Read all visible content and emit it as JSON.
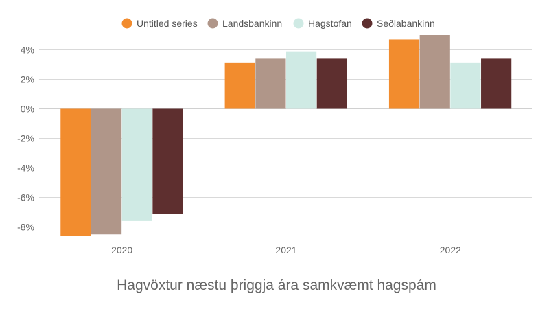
{
  "chart_data": {
    "type": "bar",
    "title": "Hagvöxtur næstu þriggja ára samkvæmt hagspám",
    "xlabel": "",
    "ylabel": "",
    "categories": [
      "2020",
      "2021",
      "2022"
    ],
    "ylim": [
      -9,
      5
    ],
    "yticks": [
      -8,
      -6,
      -4,
      -2,
      0,
      2,
      4
    ],
    "ytick_labels": [
      "-8%",
      "-6%",
      "-4%",
      "-2%",
      "0%",
      "2%",
      "4%"
    ],
    "grid": true,
    "legend_position": "top",
    "series": [
      {
        "name": "Untitled series",
        "color": "#f28c2e",
        "values": [
          -8.6,
          3.1,
          4.7
        ]
      },
      {
        "name": "Landsbankinn",
        "color": "#b09689",
        "values": [
          -8.5,
          3.4,
          5.0
        ]
      },
      {
        "name": "Hagstofan",
        "color": "#cfeae4",
        "values": [
          -7.6,
          3.9,
          3.1
        ]
      },
      {
        "name": "Seðlabankinn",
        "color": "#5e2f2f",
        "values": [
          -7.1,
          3.4,
          3.4
        ]
      }
    ]
  }
}
